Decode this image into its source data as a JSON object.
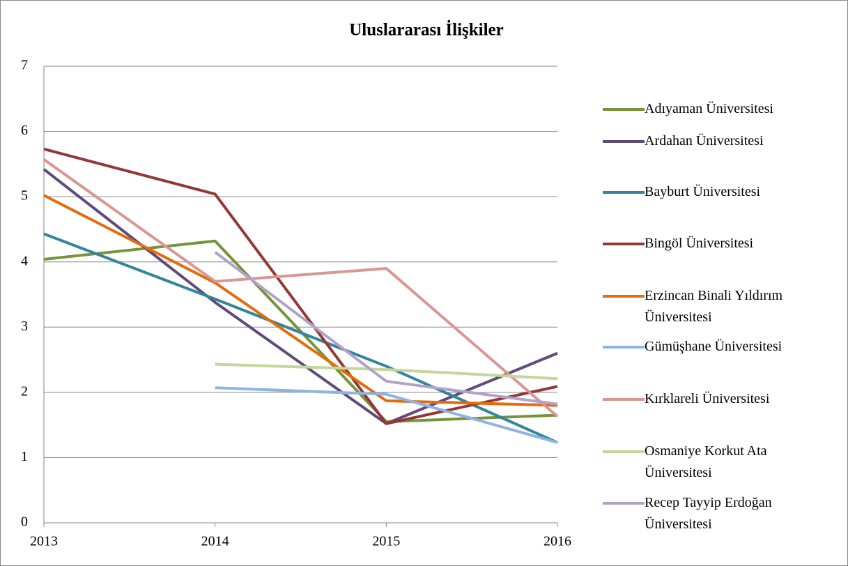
{
  "chart_data": {
    "type": "line",
    "title": "Uluslararası İlişkiler",
    "categories": [
      "2013",
      "2014",
      "2015",
      "2016"
    ],
    "ylim": [
      0,
      7
    ],
    "yticks": [
      0,
      1,
      2,
      3,
      4,
      5,
      6,
      7
    ],
    "grid": true,
    "legend": "right",
    "series": [
      {
        "name": "Adıyaman Üniversitesi",
        "color": "#77933c",
        "values": [
          4.04,
          4.32,
          1.55,
          1.65
        ]
      },
      {
        "name": "Ardahan Üniversitesi",
        "color": "#604a7b",
        "values": [
          5.42,
          3.38,
          1.52,
          2.6
        ]
      },
      {
        "name": "Bayburt Üniversitesi",
        "color": "#31859c",
        "values": [
          4.43,
          3.43,
          2.4,
          1.23
        ]
      },
      {
        "name": "Bingöl Üniversitesi",
        "color": "#953735",
        "values": [
          5.73,
          5.04,
          1.52,
          2.09
        ]
      },
      {
        "name": "Erzincan Binali Yıldırım Üniversitesi",
        "color": "#e46c0a",
        "values": [
          5.02,
          3.68,
          1.87,
          1.8
        ]
      },
      {
        "name": "Gümüşhane Üniversitesi",
        "color": "#8eb4e3",
        "values": [
          null,
          2.07,
          1.97,
          1.23
        ]
      },
      {
        "name": "Kırklareli Üniversitesi",
        "color": "#d99694",
        "values": [
          5.57,
          3.7,
          3.9,
          1.63
        ]
      },
      {
        "name": "Osmaniye Korkut Ata Üniversitesi",
        "color": "#c3d69b",
        "values": [
          null,
          2.43,
          2.35,
          2.21
        ]
      },
      {
        "name": "Recep Tayyip Erdoğan Üniversitesi",
        "color": "#b3a2c7",
        "values": [
          null,
          4.15,
          2.17,
          1.82
        ]
      }
    ]
  }
}
